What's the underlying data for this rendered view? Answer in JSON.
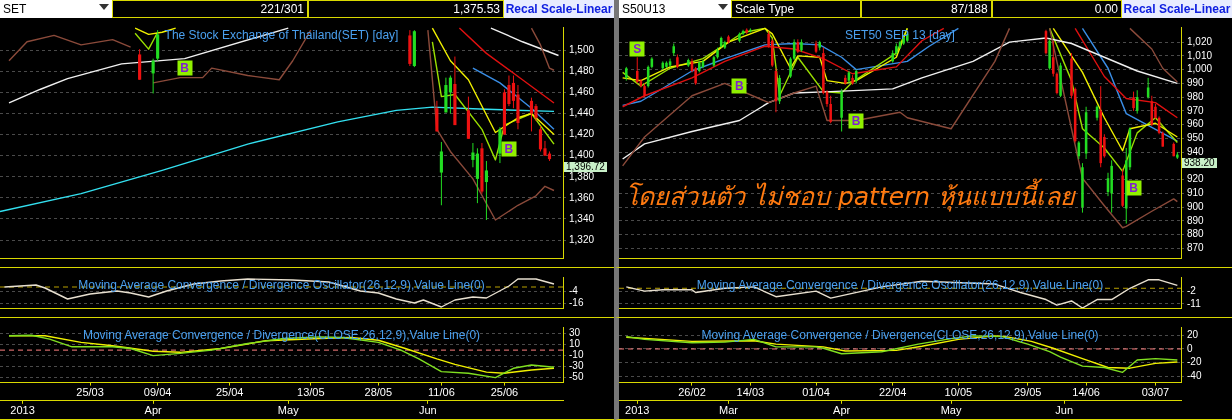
{
  "chart_data": [
    {
      "type": "candlestick",
      "title": "The Stock Exchange of Thailand(SET) [day]",
      "xlim": [
        "2013-03-05",
        "2013-07-08"
      ],
      "ylim": [
        1303,
        1522
      ],
      "yticks": [
        {
          "value": 1320,
          "label": "1,320"
        },
        {
          "value": 1340,
          "label": "1,340"
        },
        {
          "value": 1360,
          "label": "1,360"
        },
        {
          "value": 1380,
          "label": "1,380"
        },
        {
          "value": 1400,
          "label": "1,400"
        },
        {
          "value": 1420,
          "label": "1,420"
        },
        {
          "value": 1440,
          "label": "1,440"
        },
        {
          "value": 1460,
          "label": "1,460"
        },
        {
          "value": 1480,
          "label": "1,480"
        },
        {
          "value": 1500,
          "label": "1,500"
        }
      ],
      "grid": "y",
      "tick_labels": "y",
      "x": [
        "2013-04-05",
        "2013-04-08",
        "2013-04-09",
        "2013-06-04",
        "2013-06-05",
        "2013-06-10",
        "2013-06-11",
        "2013-06-12",
        "2013-06-13",
        "2013-06-14",
        "2013-06-17",
        "2013-06-18",
        "2013-06-19",
        "2013-06-20",
        "2013-06-21",
        "2013-06-24",
        "2013-06-25",
        "2013-06-26",
        "2013-06-27",
        "2013-06-28",
        "2013-07-01",
        "2013-07-02",
        "2013-07-03",
        "2013-07-04",
        "2013-07-05"
      ],
      "ohlc": [
        [
          1496,
          1501,
          1472,
          1472
        ],
        [
          1478,
          1492,
          1459,
          1490
        ],
        [
          1492,
          1519,
          1490,
          1515
        ],
        [
          1514,
          1519,
          1485,
          1487
        ],
        [
          1485,
          1519,
          1484,
          1518
        ],
        [
          1445,
          1452,
          1423,
          1423
        ],
        [
          1384,
          1413,
          1353,
          1404
        ],
        [
          1441,
          1474,
          1441,
          1467
        ],
        [
          1460,
          1476,
          1440,
          1474
        ],
        [
          1468,
          1494,
          1429,
          1429
        ],
        [
          1443,
          1456,
          1416,
          1416
        ],
        [
          1396,
          1412,
          1389,
          1403
        ],
        [
          1378,
          1407,
          1355,
          1402
        ],
        [
          1407,
          1412,
          1364,
          1366
        ],
        [
          1375,
          1395,
          1339,
          1386
        ],
        [
          1402,
          1427,
          1393,
          1425
        ],
        [
          1460,
          1463,
          1420,
          1420
        ],
        [
          1467,
          1476,
          1447,
          1449
        ],
        [
          1469,
          1476,
          1445,
          1452
        ],
        [
          1458,
          1467,
          1425,
          1431
        ],
        [
          1452,
          1455,
          1423,
          1440
        ],
        [
          1447,
          1449,
          1433,
          1436
        ],
        [
          1425,
          1428,
          1404,
          1406
        ],
        [
          1407,
          1414,
          1400,
          1400
        ],
        [
          1402,
          1404,
          1395,
          1396.72
        ]
      ],
      "colors": [
        "#ee1111",
        "#22dd22",
        "#22dd22",
        "#ee1111",
        "#22dd22",
        "#ee1111",
        "#22dd22",
        "#22dd22",
        "#22dd22",
        "#ee1111",
        "#ee1111",
        "#22dd22",
        "#22dd22",
        "#ee1111",
        "#22dd22",
        "#22dd22",
        "#ee1111",
        "#ee1111",
        "#ee1111",
        "#ee1111",
        "#ee1111",
        "#ee1111",
        "#ee1111",
        "#ee1111",
        "#ee1111"
      ],
      "series": [
        {
          "type": "line",
          "color": "#8b4a3a",
          "x": [
            "2013-03-07",
            "2013-03-11",
            "2013-03-17",
            "2013-03-23",
            "2013-03-30",
            "2013-04-03",
            "2013-04-04",
            "2013-07-01",
            "2013-07-03",
            "2013-07-05",
            "2013-07-06"
          ],
          "values": [
            1490,
            1508,
            1514,
            1505,
            1510,
            1503,
            null,
            1521,
            1505,
            1483,
            1481
          ]
        },
        {
          "type": "line",
          "color": "#8b4a3a",
          "x": [
            "2013-04-08",
            "2013-04-14",
            "2013-04-19",
            "2013-04-21",
            "2013-04-29",
            "2013-05-06",
            "2013-05-09",
            "2013-05-13",
            "2013-05-14",
            "2013-06-08",
            "2013-06-10",
            "2013-06-13",
            "2013-06-18",
            "2013-06-23",
            "2013-06-28",
            "2013-07-02",
            "2013-07-04",
            "2013-07-06"
          ],
          "values": [
            1469,
            1474,
            1474,
            1483,
            1476,
            1472,
            1490,
            1519,
            null,
            1519,
            1425,
            1404,
            1378,
            1339,
            1353,
            1362,
            1371,
            1367
          ]
        },
        {
          "type": "line",
          "color": "#f0f0f0",
          "x": [
            "2013-03-07",
            "2013-03-14",
            "2013-03-20",
            "2013-04-01",
            "2013-04-15",
            "2013-05-08",
            "2013-05-09",
            "2013-06-22",
            "2013-06-29",
            "2013-07-07"
          ],
          "values": [
            1450,
            1463,
            1473,
            1487,
            1492,
            1521,
            null,
            1521,
            1508,
            1495
          ]
        },
        {
          "type": "line",
          "color": "#e01010",
          "x": [
            "2013-06-15",
            "2013-06-21",
            "2013-06-29",
            "2013-07-06"
          ],
          "values": [
            1521,
            1497,
            1472,
            1450
          ]
        },
        {
          "type": "line",
          "color": "#f0f000",
          "x": [
            "2013-04-04",
            "2013-04-07",
            "2013-04-10",
            "2013-04-13",
            "2013-04-14",
            "2013-06-09",
            "2013-06-13",
            "2013-06-17",
            "2013-06-23",
            "2013-06-28",
            "2013-07-01",
            "2013-07-06"
          ],
          "values": [
            1521,
            1515,
            1517,
            1521,
            null,
            1521,
            1490,
            1472,
            1422,
            1436,
            1440,
            1420
          ]
        },
        {
          "type": "line",
          "color": "#9be000",
          "x": [
            "2013-04-04",
            "2013-04-07",
            "2013-04-09",
            "2013-04-10",
            "2013-06-09",
            "2013-06-11",
            "2013-06-14",
            "2013-06-20",
            "2013-06-23",
            "2013-06-25",
            "2013-07-01",
            "2013-07-06"
          ],
          "values": [
            1516,
            1501,
            1517,
            null,
            1508,
            1456,
            1458,
            1425,
            1396,
            1429,
            1440,
            1411
          ]
        },
        {
          "type": "line",
          "color": "#33e0f0",
          "x": [
            "2013-03-05",
            "2013-03-23",
            "2013-04-10",
            "2013-04-29",
            "2013-05-19",
            "2013-06-01",
            "2013-06-09",
            "2013-06-21",
            "2013-07-06"
          ],
          "values": [
            1347,
            1364,
            1386,
            1411,
            1432,
            1443,
            1446,
            1444,
            1442
          ]
        },
        {
          "type": "line",
          "color": "#3a8ee6",
          "x": [
            "2013-06-18",
            "2013-06-24",
            "2013-07-01",
            "2013-07-06"
          ],
          "values": [
            1483,
            1469,
            1445,
            1425
          ]
        }
      ],
      "annotations": [
        "SET",
        "221/301",
        "1,375.53",
        "Recal Scale-Linear",
        {
          "text": "B",
          "x": "2013-04-15",
          "y": 1483
        },
        {
          "text": "B",
          "x": "2013-06-26",
          "y": 1406
        },
        {
          "text": "1,396.72",
          "x": "2013-07-05",
          "y": 1396.72
        }
      ]
    },
    {
      "type": "candlestick",
      "title": "SET50 SEP 13  [day]",
      "subtitle": "โดยส่วนตัว ไม่ชอบ pattern หุ้นแบบนี้เลย",
      "xlim": [
        "2013-02-06",
        "2013-07-10"
      ],
      "ylim": [
        863,
        1031
      ],
      "yticks": [
        870,
        880,
        890,
        900,
        910,
        920,
        940,
        950,
        960,
        970,
        980,
        990,
        {
          "value": 1000,
          "label": "1,000"
        },
        {
          "value": 1010,
          "label": "1,010"
        },
        {
          "value": 1020,
          "label": "1,020"
        }
      ],
      "grid": "y",
      "tick_labels": "y",
      "x": [
        "2013-02-08",
        "2013-02-11",
        "2013-02-12",
        "2013-02-13",
        "2013-02-14",
        "2013-02-15",
        "2013-02-18",
        "2013-02-19",
        "2013-02-20",
        "2013-02-21",
        "2013-02-22",
        "2013-02-25",
        "2013-02-26",
        "2013-02-27",
        "2013-02-28",
        "2013-03-01",
        "2013-03-04",
        "2013-03-05",
        "2013-03-06",
        "2013-03-07",
        "2013-03-08",
        "2013-03-11",
        "2013-03-12",
        "2013-03-13",
        "2013-03-14",
        "2013-03-19",
        "2013-03-20",
        "2013-03-21",
        "2013-03-22",
        "2013-03-25",
        "2013-03-26",
        "2013-03-27",
        "2013-03-28",
        "2013-04-01",
        "2013-04-02",
        "2013-04-03",
        "2013-04-04",
        "2013-04-05",
        "2013-04-08",
        "2013-04-09",
        "2013-04-10",
        "2013-04-11",
        "2013-04-12",
        "2013-04-22",
        "2013-04-23",
        "2013-04-24",
        "2013-04-25",
        "2013-04-26",
        "2013-06-03",
        "2013-06-04",
        "2013-06-05",
        "2013-06-06",
        "2013-06-07",
        "2013-06-10",
        "2013-06-11",
        "2013-06-12",
        "2013-06-13",
        "2013-06-14",
        "2013-06-17",
        "2013-06-18",
        "2013-06-19",
        "2013-06-20",
        "2013-06-21",
        "2013-06-24",
        "2013-06-25",
        "2013-06-26",
        "2013-06-27",
        "2013-06-28",
        "2013-07-01",
        "2013-07-02",
        "2013-07-03",
        "2013-07-04",
        "2013-07-05",
        "2013-07-08",
        "2013-07-09"
      ],
      "ohlc": [
        [
          994,
          1002,
          992,
          1001
        ],
        [
          999,
          1009,
          990,
          991
        ],
        [
          992,
          993,
          987,
          988
        ],
        [
          988,
          990,
          980,
          981
        ],
        [
          988,
          1003,
          987,
          1002
        ],
        [
          1002,
          1009,
          1001,
          1008
        ],
        [
          1001,
          1006,
          1000,
          1005
        ],
        [
          1002,
          1006,
          1001,
          1005
        ],
        [
          1003,
          1008,
          1002,
          1006
        ],
        [
          1012,
          1019,
          1010,
          1017
        ],
        [
          1009,
          1011,
          1001,
          1002
        ],
        [
          1003,
          1008,
          1002,
          1007
        ],
        [
          1006,
          1008,
          998,
          999
        ],
        [
          1001,
          1002,
          989,
          990
        ],
        [
          999,
          1006,
          998,
          1005
        ],
        [
          1002,
          1007,
          1001,
          1006
        ],
        [
          1003,
          1010,
          1002,
          1009
        ],
        [
          1009,
          1016,
          1008,
          1014
        ],
        [
          1017,
          1024,
          1016,
          1023
        ],
        [
          1016,
          1021,
          1015,
          1020
        ],
        [
          1024,
          1025,
          1019,
          1020
        ],
        [
          1021,
          1027,
          1020,
          1026
        ],
        [
          1026,
          1029,
          1025,
          1028
        ],
        [
          1029,
          1030,
          1026,
          1027
        ],
        [
          1028,
          1030,
          1027,
          1029
        ],
        [
          1026,
          1028,
          1016,
          1017
        ],
        [
          1021,
          1022,
          1002,
          1003
        ],
        [
          999,
          1001,
          969,
          977
        ],
        [
          977,
          996,
          975,
          994
        ],
        [
          995,
          1009,
          994,
          1008
        ],
        [
          1008,
          1022,
          1007,
          1020
        ],
        [
          1020,
          1022,
          1012,
          1013
        ],
        [
          1014,
          1022,
          1013,
          1020
        ],
        [
          1019,
          1021,
          1012,
          1013
        ],
        [
          1016,
          1021,
          1014,
          1020
        ],
        [
          1012,
          1016,
          982,
          983
        ],
        [
          984,
          985,
          973,
          975
        ],
        [
          975,
          981,
          961,
          962
        ],
        [
          965,
          986,
          955,
          984
        ],
        [
          994,
          996,
          989,
          990
        ],
        [
          992,
          999,
          990,
          998
        ],
        [
          994,
          996,
          989,
          990
        ],
        [
          992,
          1000,
          990,
          999
        ],
        [
          1006,
          1014,
          1005,
          1012
        ],
        [
          1012,
          1019,
          1011,
          1017
        ],
        [
          1016,
          1021,
          1015,
          1020
        ],
        [
          1019,
          1024,
          1018,
          1023
        ],
        [
          1021,
          1027,
          1020,
          1026
        ],
        [
          1028,
          1029,
          1011,
          1012
        ],
        [
          1001,
          1022,
          1000,
          1021
        ],
        [
          1009,
          1021,
          995,
          997
        ],
        [
          997,
          998,
          982,
          983
        ],
        [
          981,
          1005,
          980,
          1003
        ],
        [
          1008,
          1012,
          979,
          981
        ],
        [
          986,
          987,
          947,
          948
        ],
        [
          937,
          948,
          935,
          947
        ],
        [
          900,
          932,
          896,
          929
        ],
        [
          939,
          973,
          935,
          969
        ],
        [
          965,
          974,
          963,
          973
        ],
        [
          970,
          988,
          929,
          932
        ],
        [
          951,
          953,
          936,
          937
        ],
        [
          911,
          925,
          908,
          921
        ],
        [
          910,
          934,
          896,
          930
        ],
        [
          923,
          928,
          900,
          901
        ],
        [
          899,
          943,
          888,
          934
        ],
        [
          929,
          958,
          927,
          957
        ],
        [
          980,
          984,
          970,
          972
        ],
        [
          970,
          985,
          968,
          980
        ],
        [
          980,
          994,
          979,
          987
        ],
        [
          977,
          981,
          959,
          960
        ],
        [
          973,
          975,
          964,
          965
        ],
        [
          965,
          966,
          953,
          954
        ],
        [
          954,
          955,
          944,
          944
        ],
        [
          946,
          947,
          937,
          937
        ],
        [
          936,
          940,
          935,
          938.2
        ]
      ],
      "colors": [
        "#22dd22",
        "#ee1111",
        "#ee1111",
        "#ee1111",
        "#22dd22",
        "#22dd22",
        "#22dd22",
        "#22dd22",
        "#22dd22",
        "#22dd22",
        "#ee1111",
        "#22dd22",
        "#ee1111",
        "#ee1111",
        "#22dd22",
        "#22dd22",
        "#22dd22",
        "#22dd22",
        "#22dd22",
        "#22dd22",
        "#ee1111",
        "#22dd22",
        "#22dd22",
        "#ee1111",
        "#22dd22",
        "#ee1111",
        "#ee1111",
        "#ee1111",
        "#22dd22",
        "#22dd22",
        "#22dd22",
        "#ee1111",
        "#22dd22",
        "#ee1111",
        "#22dd22",
        "#ee1111",
        "#ee1111",
        "#ee1111",
        "#22dd22",
        "#ee1111",
        "#22dd22",
        "#ee1111",
        "#22dd22",
        "#22dd22",
        "#22dd22",
        "#22dd22",
        "#22dd22",
        "#22dd22",
        "#ee1111",
        "#22dd22",
        "#ee1111",
        "#ee1111",
        "#22dd22",
        "#ee1111",
        "#ee1111",
        "#22dd22",
        "#22dd22",
        "#22dd22",
        "#22dd22",
        "#ee1111",
        "#ee1111",
        "#22dd22",
        "#22dd22",
        "#ee1111",
        "#22dd22",
        "#22dd22",
        "#ee1111",
        "#22dd22",
        "#22dd22",
        "#ee1111",
        "#ee1111",
        "#ee1111",
        "#ee1111",
        "#ee1111",
        "#22dd22"
      ],
      "series": [
        {
          "type": "line",
          "color": "#8b4a3a",
          "x": [
            "2013-06-26",
            "2013-07-02",
            "2013-07-05",
            "2013-07-09"
          ],
          "values": [
            1030,
            1015,
            1001,
            991
          ]
        },
        {
          "type": "line",
          "color": "#8b4a3a",
          "x": [
            "2013-02-07",
            "2013-02-13",
            "2013-02-26",
            "2013-03-07",
            "2013-03-12",
            "2013-03-19",
            "2013-03-26",
            "2013-04-01",
            "2013-04-04",
            "2013-04-12",
            "2013-04-24",
            "2013-04-26",
            "2013-05-08",
            "2013-05-20",
            "2013-05-24",
            "2013-05-25",
            "2013-06-04",
            "2013-06-10",
            "2013-06-13",
            "2013-06-19",
            "2013-06-24",
            "2013-06-25",
            "2013-07-02",
            "2013-07-08",
            "2013-07-09"
          ],
          "values": [
            930,
            951,
            981,
            990,
            984,
            976,
            983,
            988,
            963,
            963,
            969,
            965,
            957,
            1006,
            1030,
            null,
            1030,
            957,
            921,
            901,
            885,
            886,
            897,
            906,
            904
          ]
        },
        {
          "type": "line",
          "color": "#f0f0f0",
          "x": [
            "2013-02-07",
            "2013-02-13",
            "2013-02-26",
            "2013-03-11",
            "2013-03-19",
            "2013-03-26",
            "2013-04-05",
            "2013-04-22",
            "2013-04-30",
            "2013-05-14",
            "2013-05-24",
            "2013-06-03",
            "2013-06-10",
            "2013-06-19",
            "2013-06-28",
            "2013-07-09"
          ],
          "values": [
            935,
            946,
            955,
            963,
            976,
            983,
            984,
            986,
            994,
            1006,
            1020,
            1023,
            1019,
            1009,
            999,
            990
          ]
        },
        {
          "type": "line",
          "color": "#e01010",
          "x": [
            "2013-02-07",
            "2013-02-13",
            "2013-02-26",
            "2013-03-07",
            "2013-03-18",
            "2013-03-26",
            "2013-04-03",
            "2013-04-11",
            "2013-04-23",
            "2013-04-30",
            "2013-05-06",
            "2013-05-07",
            "2013-06-11",
            "2013-06-19",
            "2013-06-25",
            "2013-07-03",
            "2013-07-09"
          ],
          "values": [
            973,
            981,
            994,
            1006,
            1017,
            1015,
            1008,
            997,
            1002,
            1021,
            1030,
            null,
            1030,
            995,
            979,
            976,
            965
          ]
        },
        {
          "type": "line",
          "color": "#f0f000",
          "x": [
            "2013-02-07",
            "2013-02-12",
            "2013-02-20",
            "2013-03-01",
            "2013-03-08",
            "2013-03-18",
            "2013-03-20",
            "2013-03-25",
            "2013-03-27",
            "2013-04-02",
            "2013-04-04",
            "2013-04-09",
            "2013-04-12",
            "2013-04-23",
            "2013-04-26",
            "2013-04-29",
            "2013-06-05",
            "2013-06-13",
            "2013-06-19",
            "2013-06-24",
            "2013-06-26",
            "2013-07-03",
            "2013-07-09"
          ],
          "values": [
            994,
            992,
            1002,
            1006,
            1020,
            1030,
            1026,
            1001,
            1010,
            1009,
            992,
            990,
            992,
            1009,
            1030,
            null,
            1030,
            998,
            965,
            941,
            957,
            961,
            951
          ]
        },
        {
          "type": "line",
          "color": "#9be000",
          "x": [
            "2013-02-07",
            "2013-02-12",
            "2013-02-20",
            "2013-03-01",
            "2013-03-12",
            "2013-03-18",
            "2013-03-20",
            "2013-03-22",
            "2013-03-27",
            "2013-04-03",
            "2013-04-08",
            "2013-04-11",
            "2013-04-23",
            "2013-04-26",
            "2013-04-29",
            "2013-06-04",
            "2013-06-10",
            "2013-06-13",
            "2013-06-19",
            "2013-06-24",
            "2013-06-28",
            "2013-07-03",
            "2013-07-09"
          ],
          "values": [
            998,
            988,
            1001,
            1008,
            1027,
            1030,
            1023,
            981,
            1009,
            984,
            983,
            991,
            1012,
            1030,
            null,
            1030,
            992,
            957,
            943,
            926,
            954,
            965,
            947
          ]
        },
        {
          "type": "line",
          "color": "#3a8ee6",
          "x": [
            "2013-02-07",
            "2013-02-12",
            "2013-02-26",
            "2013-03-07",
            "2013-03-18",
            "2013-03-26",
            "2013-04-02",
            "2013-04-08",
            "2013-04-12",
            "2013-04-26",
            "2013-05-02",
            "2013-05-10",
            "2013-05-11",
            "2013-06-13",
            "2013-06-20",
            "2013-06-25",
            "2013-07-02",
            "2013-07-09"
          ],
          "values": [
            974,
            977,
            999,
            1008,
            1018,
            1019,
            1018,
            1009,
            1000,
            1006,
            1017,
            1030,
            null,
            1030,
            1001,
            968,
            958,
            948
          ]
        }
      ],
      "annotations": [
        "S50U13",
        "Scale Type",
        "87/188",
        "0.00",
        "Recal Scale-Linear",
        {
          "text": "S",
          "x": "2013-02-11",
          "y": 1015
        },
        {
          "text": "B",
          "x": "2013-03-11",
          "y": 988
        },
        {
          "text": "B",
          "x": "2013-04-12",
          "y": 963
        },
        {
          "text": "B",
          "x": "2013-06-27",
          "y": 914
        },
        {
          "text": "938.20",
          "x": "2013-07-09",
          "y": 938.2
        }
      ]
    },
    {
      "type": "line",
      "title": "Moving Average Convergence / Divergence Oscillator(26,12,9),Value Line(0)",
      "xlim": [
        "2013-03-05",
        "2013-07-08"
      ],
      "ylim": [
        -21,
        10
      ],
      "yticks": [
        -4,
        -16
      ],
      "grid": "y",
      "tick_labels": "y",
      "ref_lines": [
        {
          "axis": "y",
          "value": 0,
          "color": "#b8a000",
          "line_style": "dashed"
        }
      ],
      "series": [
        {
          "color": "#e8e0d0",
          "x": [
            "2013-03-06",
            "2013-03-13",
            "2013-03-15",
            "2013-03-20",
            "2013-03-25",
            "2013-03-31",
            "2013-04-03",
            "2013-04-07",
            "2013-04-11",
            "2013-04-17",
            "2013-04-23",
            "2013-04-29",
            "2013-05-09",
            "2013-05-17",
            "2013-05-24",
            "2013-05-28",
            "2013-06-01",
            "2013-06-05",
            "2013-06-07",
            "2013-06-11",
            "2013-06-14",
            "2013-06-18",
            "2013-06-21",
            "2013-06-26",
            "2013-06-28",
            "2013-07-02",
            "2013-07-06"
          ],
          "values": [
            0,
            2,
            -1,
            -12,
            -7,
            -4,
            -6,
            -10,
            -4,
            3,
            6,
            8,
            7,
            5,
            -4,
            -6,
            -12,
            -16,
            -13,
            -20,
            -13,
            -10,
            -11,
            1,
            8,
            8,
            3
          ]
        }
      ]
    },
    {
      "type": "line",
      "title": "Moving Average Convergence / Divergence Oscillator(26,12,9),Value Line(0)",
      "xlim": [
        "2013-02-06",
        "2013-07-10"
      ],
      "ylim": [
        -14,
        8
      ],
      "yticks": [
        -2,
        -11
      ],
      "grid": "y",
      "tick_labels": "y",
      "ref_lines": [
        {
          "axis": "y",
          "value": 0,
          "color": "#b8a000",
          "line_style": "dashed"
        }
      ],
      "series": [
        {
          "color": "#e8e0d0",
          "x": [
            "2013-02-08",
            "2013-02-13",
            "2013-02-18",
            "2013-02-26",
            "2013-02-27",
            "2013-03-07",
            "2013-03-15",
            "2013-03-21",
            "2013-04-01",
            "2013-04-05",
            "2013-04-19",
            "2013-04-30",
            "2013-05-20",
            "2013-05-27",
            "2013-06-03",
            "2013-06-06",
            "2013-06-10",
            "2013-06-13",
            "2013-06-17",
            "2013-06-21",
            "2013-06-26",
            "2013-07-01",
            "2013-07-04",
            "2013-07-09"
          ],
          "values": [
            1,
            -2,
            -1,
            -1,
            -3,
            0,
            1,
            -6,
            -2,
            -7,
            1,
            5,
            3,
            -3,
            -8,
            -12,
            -9,
            -14,
            -8,
            -8,
            0,
            6,
            6,
            2
          ]
        }
      ]
    },
    {
      "type": "line",
      "title": "Moving Average Convergence / Divergence(CLOSE,26,12,9),Value Line(0)",
      "xlim": [
        "2013-03-05",
        "2013-07-08"
      ],
      "ylim": [
        -59,
        42
      ],
      "yticks": [
        30,
        10,
        -10,
        -30,
        -50
      ],
      "grid": "y",
      "xticks": [
        {
          "value": "2013-03-25",
          "label": "25/03"
        },
        {
          "value": "2013-04-09",
          "label": "09/04"
        },
        {
          "value": "2013-04-25",
          "label": "25/04"
        },
        {
          "value": "2013-05-13",
          "label": "13/05"
        },
        {
          "value": "2013-05-28",
          "label": "28/05"
        },
        {
          "value": "2013-06-11",
          "label": "11/06"
        },
        {
          "value": "2013-06-25",
          "label": "25/06"
        }
      ],
      "x2lim": [
        "2013-03-05",
        "2013-07-08"
      ],
      "x2ticks": [
        {
          "value": "2013-03-10",
          "label": "2013"
        },
        {
          "value": "2013-04-08",
          "label": "Apr"
        },
        {
          "value": "2013-05-08",
          "label": "May"
        },
        {
          "value": "2013-06-08",
          "label": "Jun"
        }
      ],
      "ref_lines": [
        {
          "axis": "y",
          "value": 0,
          "color": "#ff8080",
          "line_style": "dashed"
        }
      ],
      "series": [
        {
          "color": "#80e020",
          "x": [
            "2013-03-07",
            "2013-03-12",
            "2013-03-16",
            "2013-03-21",
            "2013-03-30",
            "2013-04-03",
            "2013-04-08",
            "2013-04-14",
            "2013-04-21",
            "2013-04-29",
            "2013-05-07",
            "2013-05-15",
            "2013-05-20",
            "2013-05-28",
            "2013-06-02",
            "2013-06-06",
            "2013-06-11",
            "2013-06-17",
            "2013-06-23",
            "2013-06-27",
            "2013-07-01",
            "2013-07-06"
          ],
          "values": [
            26,
            27,
            20,
            6,
            6,
            3,
            -10,
            -6,
            0,
            12,
            21,
            24,
            23,
            14,
            0,
            -16,
            -39,
            -42,
            -50,
            -33,
            -27,
            -31
          ]
        },
        {
          "color": "#f0f000",
          "x": [
            "2013-03-07",
            "2013-03-15",
            "2013-03-23",
            "2013-03-30",
            "2013-04-08",
            "2013-04-14",
            "2013-04-23",
            "2013-05-03",
            "2013-05-15",
            "2013-05-22",
            "2013-05-28",
            "2013-06-03",
            "2013-06-10",
            "2013-06-14",
            "2013-06-21",
            "2013-06-25",
            "2013-07-01",
            "2013-07-06"
          ],
          "values": [
            26,
            26,
            14,
            8,
            -2,
            -4,
            3,
            17,
            21,
            23,
            18,
            3,
            -16,
            -26,
            -40,
            -42,
            -36,
            -33
          ]
        }
      ]
    },
    {
      "type": "line",
      "title": "Moving Average Convergence / Divergence(CLOSE,26,12,9),Value Line(0)",
      "xlim": [
        "2013-02-06",
        "2013-07-10"
      ],
      "ylim": [
        -49,
        32
      ],
      "yticks": [
        20,
        0,
        -20,
        -40
      ],
      "grid": "y",
      "xticks": [
        {
          "value": "2013-02-26",
          "label": "26/02"
        },
        {
          "value": "2013-03-14",
          "label": "14/03"
        },
        {
          "value": "2013-04-01",
          "label": "01/04"
        },
        {
          "value": "2013-04-22",
          "label": "22/04"
        },
        {
          "value": "2013-05-10",
          "label": "10/05"
        },
        {
          "value": "2013-05-29",
          "label": "29/05"
        },
        {
          "value": "2013-06-14",
          "label": "14/06"
        },
        {
          "value": "2013-07-03",
          "label": "03/07"
        }
      ],
      "x2lim": [
        "2013-02-06",
        "2013-07-10"
      ],
      "x2ticks": [
        {
          "value": "2013-02-11",
          "label": "2013"
        },
        {
          "value": "2013-03-08",
          "label": "Mar"
        },
        {
          "value": "2013-04-08",
          "label": "Apr"
        },
        {
          "value": "2013-05-08",
          "label": "May"
        },
        {
          "value": "2013-06-08",
          "label": "Jun"
        }
      ],
      "ref_lines": [
        {
          "axis": "y",
          "value": 0,
          "color": "#ff8080",
          "line_style": "dashed"
        }
      ],
      "series": [
        {
          "color": "#80e020",
          "x": [
            "2013-02-08",
            "2013-02-13",
            "2013-02-26",
            "2013-03-07",
            "2013-03-15",
            "2013-03-21",
            "2013-04-01",
            "2013-04-03",
            "2013-04-08",
            "2013-04-19",
            "2013-04-29",
            "2013-05-08",
            "2013-05-14",
            "2013-05-22",
            "2013-05-29",
            "2013-06-04",
            "2013-06-07",
            "2013-06-13",
            "2013-06-19",
            "2013-06-24",
            "2013-06-28",
            "2013-07-03",
            "2013-07-09"
          ],
          "values": [
            18,
            14,
            9,
            10,
            14,
            3,
            3,
            1,
            -7,
            -4,
            7,
            15,
            19,
            18,
            7,
            -4,
            -12,
            -25,
            -27,
            -34,
            -16,
            -14,
            -16
          ]
        },
        {
          "color": "#f0f000",
          "x": [
            "2013-02-08",
            "2013-02-26",
            "2013-03-15",
            "2013-03-21",
            "2013-04-03",
            "2013-04-09",
            "2013-04-23",
            "2013-04-30",
            "2013-05-10",
            "2013-05-20",
            "2013-05-23",
            "2013-05-30",
            "2013-06-05",
            "2013-06-13",
            "2013-06-20",
            "2013-06-26",
            "2013-07-03",
            "2013-07-09"
          ],
          "values": [
            17,
            11,
            12,
            7,
            3,
            -3,
            -2,
            4,
            14,
            19,
            18,
            11,
            1,
            -14,
            -27,
            -28,
            -21,
            -19
          ]
        }
      ]
    }
  ]
}
